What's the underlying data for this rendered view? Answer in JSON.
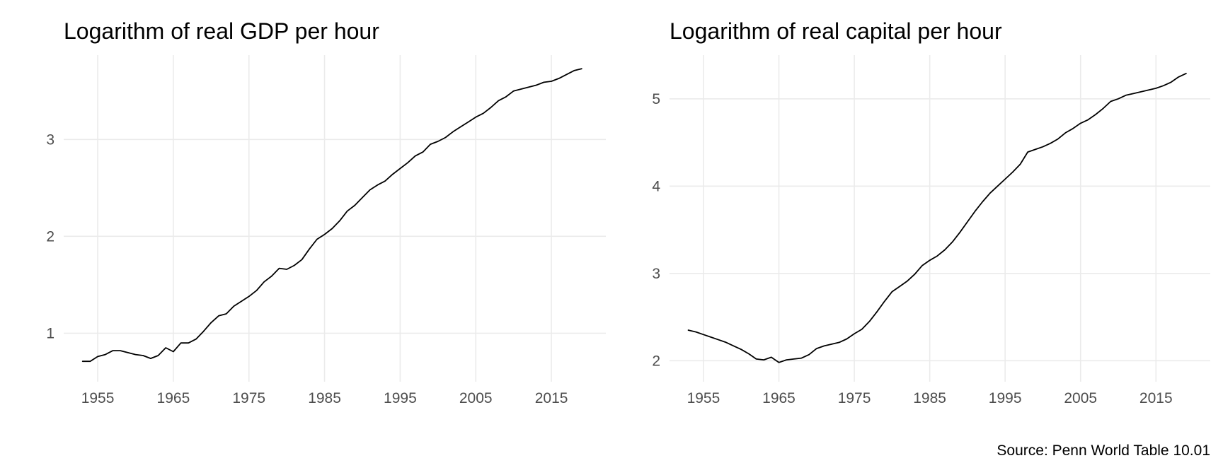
{
  "figure": {
    "caption": "Source: Penn World Table 10.01"
  },
  "chart_data": [
    {
      "type": "line",
      "title": "Logarithm of real GDP per hour",
      "xlabel": "",
      "ylabel": "",
      "x_ticks": [
        1955,
        1965,
        1975,
        1985,
        1995,
        2005,
        2015
      ],
      "y_ticks": [
        1,
        2,
        3
      ],
      "xlim": [
        1950.5,
        2022.2
      ],
      "ylim": [
        0.5,
        3.87
      ],
      "grid": true,
      "series": [
        {
          "x": [
            1953,
            1954,
            1955,
            1956,
            1957,
            1958,
            1959,
            1960,
            1961,
            1962,
            1963,
            1964,
            1965,
            1966,
            1967,
            1968,
            1969,
            1970,
            1971,
            1972,
            1973,
            1974,
            1975,
            1976,
            1977,
            1978,
            1979,
            1980,
            1981,
            1982,
            1983,
            1984,
            1985,
            1986,
            1987,
            1988,
            1989,
            1990,
            1991,
            1992,
            1993,
            1994,
            1995,
            1996,
            1997,
            1998,
            1999,
            2000,
            2001,
            2002,
            2003,
            2004,
            2005,
            2006,
            2007,
            2008,
            2009,
            2010,
            2011,
            2012,
            2013,
            2014,
            2015,
            2016,
            2017,
            2018,
            2019
          ],
          "values": [
            0.71,
            0.71,
            0.76,
            0.78,
            0.82,
            0.82,
            0.8,
            0.78,
            0.77,
            0.74,
            0.77,
            0.85,
            0.81,
            0.9,
            0.9,
            0.94,
            1.02,
            1.11,
            1.18,
            1.2,
            1.28,
            1.33,
            1.38,
            1.44,
            1.53,
            1.59,
            1.67,
            1.66,
            1.7,
            1.76,
            1.87,
            1.97,
            2.02,
            2.08,
            2.16,
            2.26,
            2.32,
            2.4,
            2.48,
            2.53,
            2.57,
            2.64,
            2.7,
            2.76,
            2.83,
            2.87,
            2.95,
            2.98,
            3.02,
            3.08,
            3.13,
            3.18,
            3.23,
            3.27,
            3.33,
            3.4,
            3.44,
            3.5,
            3.52,
            3.54,
            3.56,
            3.59,
            3.6,
            3.63,
            3.67,
            3.71,
            3.73
          ]
        }
      ]
    },
    {
      "type": "line",
      "title": "Logarithm of real capital per hour",
      "xlabel": "",
      "ylabel": "",
      "x_ticks": [
        1955,
        1965,
        1975,
        1985,
        1995,
        2005,
        2015
      ],
      "y_ticks": [
        2,
        3,
        4,
        5
      ],
      "xlim": [
        1950.5,
        2022.2
      ],
      "ylim": [
        1.76,
        5.5
      ],
      "grid": true,
      "series": [
        {
          "x": [
            1953,
            1954,
            1955,
            1956,
            1957,
            1958,
            1959,
            1960,
            1961,
            1962,
            1963,
            1964,
            1965,
            1966,
            1967,
            1968,
            1969,
            1970,
            1971,
            1972,
            1973,
            1974,
            1975,
            1976,
            1977,
            1978,
            1979,
            1980,
            1981,
            1982,
            1983,
            1984,
            1985,
            1986,
            1987,
            1988,
            1989,
            1990,
            1991,
            1992,
            1993,
            1994,
            1995,
            1996,
            1997,
            1998,
            1999,
            2000,
            2001,
            2002,
            2003,
            2004,
            2005,
            2006,
            2007,
            2008,
            2009,
            2010,
            2011,
            2012,
            2013,
            2014,
            2015,
            2016,
            2017,
            2018,
            2019
          ],
          "values": [
            2.35,
            2.33,
            2.3,
            2.27,
            2.24,
            2.21,
            2.17,
            2.13,
            2.08,
            2.02,
            2.01,
            2.04,
            1.98,
            2.01,
            2.02,
            2.03,
            2.07,
            2.14,
            2.17,
            2.19,
            2.21,
            2.25,
            2.31,
            2.36,
            2.45,
            2.56,
            2.68,
            2.79,
            2.85,
            2.91,
            2.99,
            3.09,
            3.15,
            3.2,
            3.27,
            3.36,
            3.47,
            3.59,
            3.71,
            3.82,
            3.92,
            4.0,
            4.08,
            4.16,
            4.25,
            4.39,
            4.42,
            4.45,
            4.49,
            4.54,
            4.61,
            4.66,
            4.72,
            4.76,
            4.82,
            4.89,
            4.97,
            5.0,
            5.04,
            5.06,
            5.08,
            5.1,
            5.12,
            5.15,
            5.19,
            5.25,
            5.29
          ]
        }
      ]
    }
  ]
}
